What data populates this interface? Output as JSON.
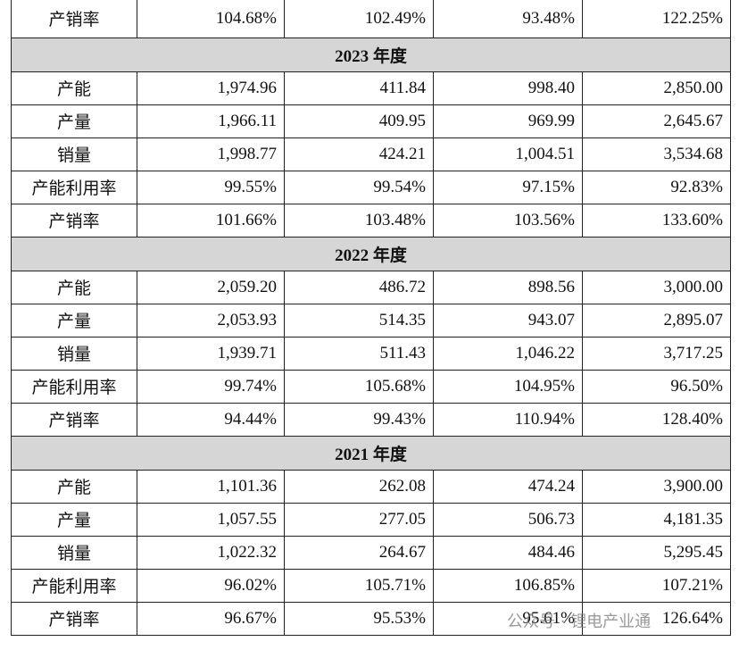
{
  "table": {
    "top_row": [
      "产销率",
      "104.68%",
      "102.49%",
      "93.48%",
      "122.25%"
    ],
    "sections": [
      {
        "title": "2023 年度",
        "rows": [
          [
            "产能",
            "1,974.96",
            "411.84",
            "998.40",
            "2,850.00"
          ],
          [
            "产量",
            "1,966.11",
            "409.95",
            "969.99",
            "2,645.67"
          ],
          [
            "销量",
            "1,998.77",
            "424.21",
            "1,004.51",
            "3,534.68"
          ],
          [
            "产能利用率",
            "99.55%",
            "99.54%",
            "97.15%",
            "92.83%"
          ],
          [
            "产销率",
            "101.66%",
            "103.48%",
            "103.56%",
            "133.60%"
          ]
        ]
      },
      {
        "title": "2022 年度",
        "rows": [
          [
            "产能",
            "2,059.20",
            "486.72",
            "898.56",
            "3,000.00"
          ],
          [
            "产量",
            "2,053.93",
            "514.35",
            "943.07",
            "2,895.07"
          ],
          [
            "销量",
            "1,939.71",
            "511.43",
            "1,046.22",
            "3,717.25"
          ],
          [
            "产能利用率",
            "99.74%",
            "105.68%",
            "104.95%",
            "96.50%"
          ],
          [
            "产销率",
            "94.44%",
            "99.43%",
            "110.94%",
            "128.40%"
          ]
        ]
      },
      {
        "title": "2021 年度",
        "rows": [
          [
            "产能",
            "1,101.36",
            "262.08",
            "474.24",
            "3,900.00"
          ],
          [
            "产量",
            "1,057.55",
            "277.05",
            "506.73",
            "4,181.35"
          ],
          [
            "销量",
            "1,022.32",
            "264.67",
            "484.46",
            "5,295.45"
          ],
          [
            "产能利用率",
            "96.02%",
            "105.71%",
            "106.85%",
            "107.21%"
          ],
          [
            "产销率",
            "96.67%",
            "95.53%",
            "95.61%",
            "126.64%"
          ]
        ]
      }
    ]
  },
  "watermark": "公众号 · 锂电产业通"
}
